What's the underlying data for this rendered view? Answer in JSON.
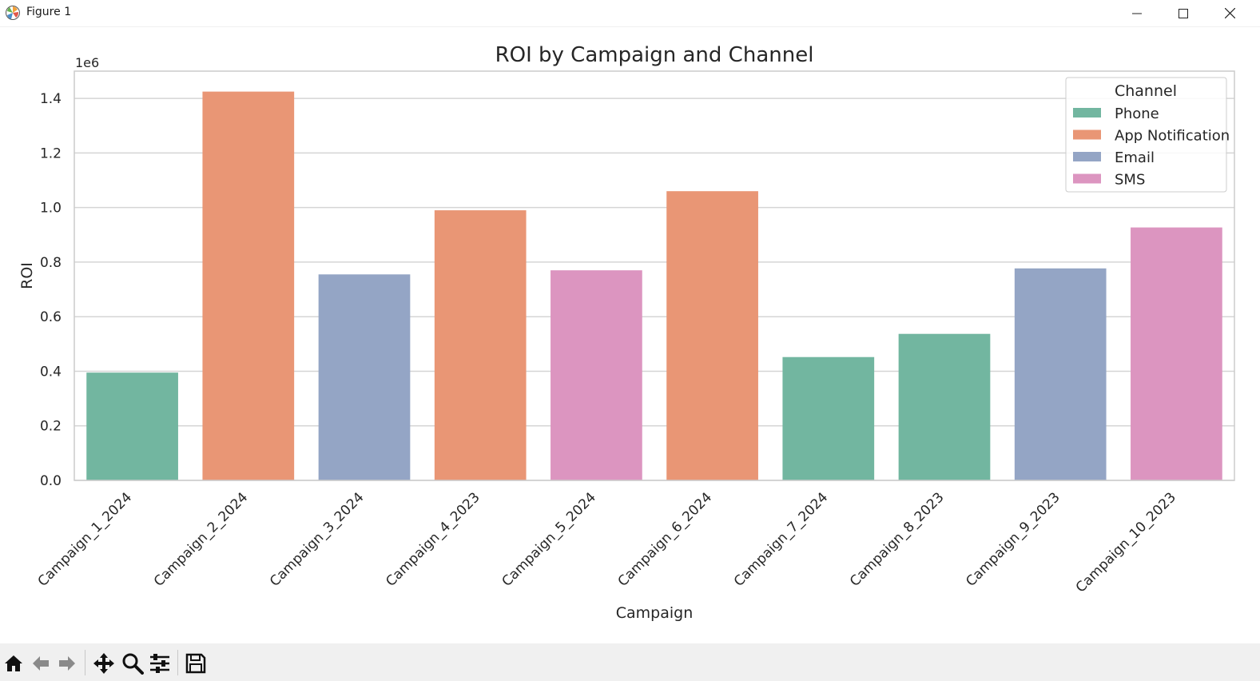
{
  "window": {
    "title": "Figure 1"
  },
  "toolbar": {
    "buttons": [
      "home-icon",
      "back-icon",
      "forward-icon",
      "pan-icon",
      "zoom-icon",
      "configure-icon",
      "save-icon"
    ]
  },
  "chart_data": {
    "type": "bar",
    "title": "ROI by Campaign and Channel",
    "xlabel": "Campaign",
    "ylabel": "ROI",
    "y_offset_label": "1e6",
    "ylim": [
      0,
      1.5
    ],
    "y_scale_factor": 1000000,
    "yticks": [
      "0.0",
      "0.2",
      "0.4",
      "0.6",
      "0.8",
      "1.0",
      "1.2",
      "1.4"
    ],
    "grid": true,
    "legend": {
      "title": "Channel",
      "placement": "top-right",
      "entries": [
        {
          "name": "Phone",
          "color": "#72b6a0"
        },
        {
          "name": "App Notification",
          "color": "#e99675"
        },
        {
          "name": "Email",
          "color": "#94a5c5"
        },
        {
          "name": "SMS",
          "color": "#dc95c0"
        }
      ]
    },
    "categories": [
      "Campaign_1_2024",
      "Campaign_2_2024",
      "Campaign_3_2024",
      "Campaign_4_2023",
      "Campaign_5_2024",
      "Campaign_6_2024",
      "Campaign_7_2024",
      "Campaign_8_2023",
      "Campaign_9_2023",
      "Campaign_10_2023"
    ],
    "values": [
      395000,
      1425000,
      755000,
      990000,
      770000,
      1060000,
      452000,
      537000,
      777000,
      927000
    ],
    "channels": [
      "Phone",
      "App Notification",
      "Email",
      "App Notification",
      "SMS",
      "App Notification",
      "Phone",
      "Phone",
      "Email",
      "SMS"
    ]
  }
}
